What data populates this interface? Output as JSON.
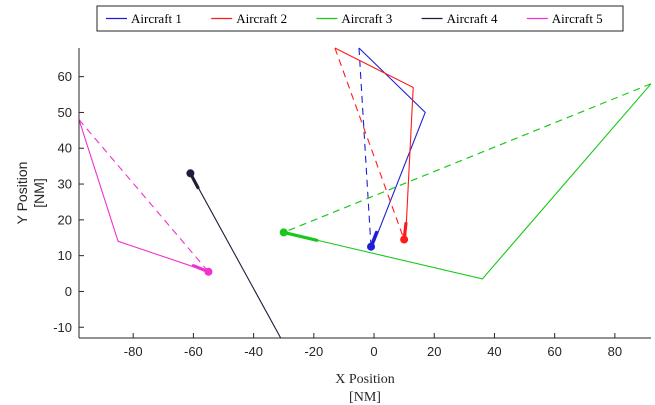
{
  "chart_data": {
    "type": "line",
    "title": "",
    "xlabel": "X Position",
    "xlabel_unit": "[NM]",
    "ylabel": "Y Position",
    "ylabel_unit": "[NM]",
    "xlim": [
      -98,
      92
    ],
    "ylim": [
      -13,
      68
    ],
    "xticks": [
      -80,
      -60,
      -40,
      -20,
      0,
      20,
      40,
      60,
      80
    ],
    "yticks": [
      -10,
      0,
      10,
      20,
      30,
      40,
      50,
      60
    ],
    "grid": false,
    "legend_position": "top",
    "series": [
      {
        "name": "Aircraft 1",
        "color": "#1f1fd6",
        "path": [
          [
            -0.5,
            12.5
          ],
          [
            17,
            50
          ],
          [
            -5,
            68
          ]
        ],
        "predicted": [
          [
            -5,
            68
          ],
          [
            -1,
            12.5
          ]
        ],
        "current": [
          -1,
          12.5
        ],
        "heading": [
          0.8,
          16.5
        ]
      },
      {
        "name": "Aircraft 2",
        "color": "#ff1a1a",
        "path": [
          [
            10.5,
            15
          ],
          [
            13,
            57
          ],
          [
            -13,
            68
          ]
        ],
        "predicted": [
          [
            -13,
            68
          ],
          [
            10,
            14.5
          ]
        ],
        "current": [
          10,
          14.5
        ],
        "heading": [
          10.6,
          19
        ]
      },
      {
        "name": "Aircraft 3",
        "color": "#19c919",
        "path": [
          [
            -30,
            16.5
          ],
          [
            36,
            3.5
          ],
          [
            92,
            58
          ]
        ],
        "predicted": [
          [
            92,
            58
          ],
          [
            -30,
            16.5
          ]
        ],
        "current": [
          -30,
          16.5
        ],
        "heading": [
          -19,
          14.3
        ]
      },
      {
        "name": "Aircraft 4",
        "color": "#1e1e3c",
        "path": [
          [
            -61,
            33
          ],
          [
            -31,
            -13
          ]
        ],
        "predicted": [],
        "current": [
          -61,
          33
        ],
        "heading": [
          -58.5,
          29
        ]
      },
      {
        "name": "Aircraft 5",
        "color": "#f032cf",
        "path": [
          [
            -55,
            5.5
          ],
          [
            -85,
            14
          ],
          [
            -98,
            48
          ]
        ],
        "predicted": [
          [
            -98,
            48
          ],
          [
            -55,
            5.5
          ]
        ],
        "current": [
          -55,
          5.5
        ],
        "heading": [
          -60,
          7.2
        ]
      }
    ]
  }
}
